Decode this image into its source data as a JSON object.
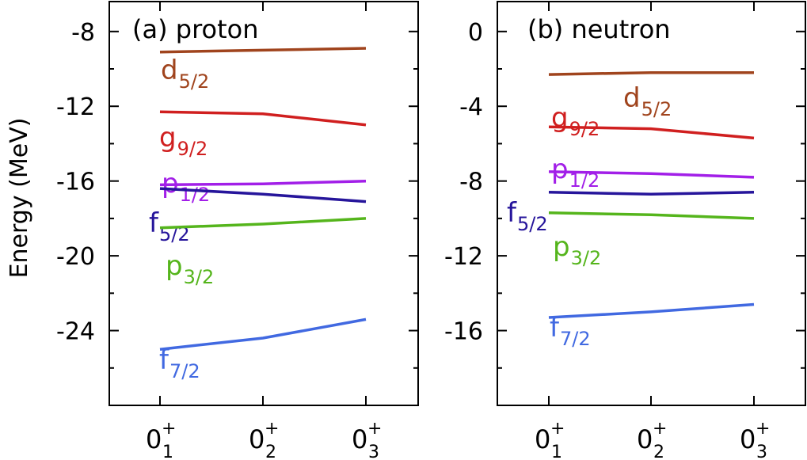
{
  "ylabel": "Energy (MeV)",
  "chart_data": [
    {
      "type": "line",
      "title": "(a) proton",
      "categories": [
        {
          "main": "0",
          "sup": "+",
          "sub": "1"
        },
        {
          "main": "0",
          "sup": "+",
          "sub": "2"
        },
        {
          "main": "0",
          "sup": "+",
          "sub": "3"
        }
      ],
      "ylim": [
        -28,
        -6.4
      ],
      "yticks": [
        -8,
        -12,
        -16,
        -20,
        -24
      ],
      "series": [
        {
          "name": "d",
          "sub": "5/2",
          "color": "#a0441d",
          "values": [
            -9.1,
            -9.0,
            -8.9
          ]
        },
        {
          "name": "g",
          "sub": "9/2",
          "color": "#d01f1f",
          "values": [
            -12.3,
            -12.4,
            -13.0
          ]
        },
        {
          "name": "p",
          "sub": "1/2",
          "color": "#a21fe8",
          "values": [
            -16.2,
            -16.15,
            -16.0
          ]
        },
        {
          "name": "f",
          "sub": "5/2",
          "color": "#26159b",
          "values": [
            -16.4,
            -16.7,
            -17.1
          ]
        },
        {
          "name": "p",
          "sub": "3/2",
          "color": "#55b51c",
          "values": [
            -18.5,
            -18.3,
            -18.0
          ]
        },
        {
          "name": "f",
          "sub": "7/2",
          "color": "#4169e1",
          "values": [
            -25.0,
            -24.4,
            -23.4
          ]
        }
      ]
    },
    {
      "type": "line",
      "title": "(b) neutron",
      "categories": [
        {
          "main": "0",
          "sup": "+",
          "sub": "1"
        },
        {
          "main": "0",
          "sup": "+",
          "sub": "2"
        },
        {
          "main": "0",
          "sup": "+",
          "sub": "3"
        }
      ],
      "ylim": [
        -20,
        1.6
      ],
      "yticks": [
        0,
        -4,
        -8,
        -12,
        -16
      ],
      "series": [
        {
          "name": "d",
          "sub": "5/2",
          "color": "#a0441d",
          "values": [
            -2.3,
            -2.2,
            -2.2
          ]
        },
        {
          "name": "g",
          "sub": "9/2",
          "color": "#d01f1f",
          "values": [
            -5.1,
            -5.2,
            -5.7
          ]
        },
        {
          "name": "p",
          "sub": "1/2",
          "color": "#a21fe8",
          "values": [
            -7.5,
            -7.6,
            -7.8
          ]
        },
        {
          "name": "f",
          "sub": "5/2",
          "color": "#26159b",
          "values": [
            -8.6,
            -8.7,
            -8.6
          ]
        },
        {
          "name": "p",
          "sub": "3/2",
          "color": "#55b51c",
          "values": [
            -9.7,
            -9.8,
            -10.0
          ]
        },
        {
          "name": "f",
          "sub": "7/2",
          "color": "#4169e1",
          "values": [
            -15.3,
            -15.0,
            -14.6
          ]
        }
      ]
    }
  ]
}
